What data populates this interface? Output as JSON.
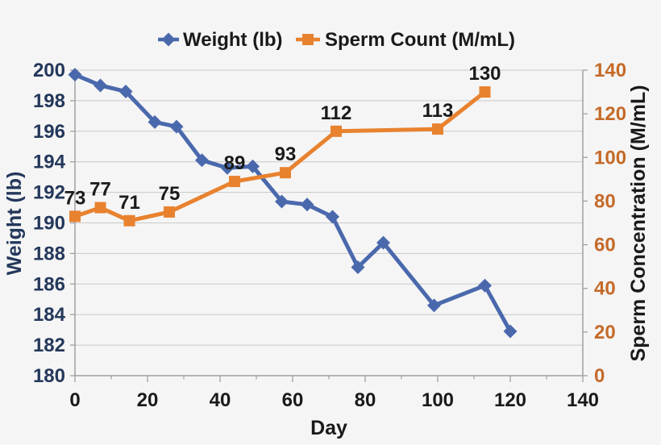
{
  "chart_data": {
    "type": "line",
    "title": "",
    "legend": {
      "position": "top",
      "entries": [
        "Weight (lb)",
        "Sperm Count (M/mL)"
      ]
    },
    "x_axis": {
      "label": "Day",
      "lim": [
        0,
        140
      ],
      "ticks": [
        0,
        20,
        40,
        60,
        80,
        100,
        120,
        140
      ],
      "minor_ticks": [
        10,
        30,
        50,
        70,
        90,
        110,
        130
      ]
    },
    "left_axis": {
      "label": "Weight (lb)",
      "lim": [
        180,
        200
      ],
      "ticks": [
        200,
        198,
        196,
        194,
        192,
        190,
        188,
        186,
        184,
        182,
        180
      ],
      "tick_color": "#24385B"
    },
    "right_axis": {
      "label": "Sperm Concentration (M/mL)",
      "lim": [
        0,
        140
      ],
      "ticks": [
        140,
        120,
        100,
        80,
        60,
        40,
        20,
        0
      ],
      "tick_color": "#C56A29",
      "label_color": "#1A1A1A"
    },
    "grid": "horizontal",
    "series": [
      {
        "name": "Weight (lb)",
        "axis": "left",
        "marker": "diamond",
        "color": "#4A69AD",
        "x": [
          0,
          7,
          14,
          22,
          28,
          35,
          42,
          49,
          57,
          64,
          71,
          78,
          85,
          99,
          113,
          120
        ],
        "y": [
          199.7,
          199.0,
          198.6,
          196.6,
          196.3,
          194.1,
          193.6,
          193.7,
          191.4,
          191.2,
          190.4,
          187.1,
          188.7,
          184.6,
          185.9,
          182.9
        ]
      },
      {
        "name": "Sperm Count (M/mL)",
        "axis": "right",
        "marker": "square",
        "color": "#E8822F",
        "x": [
          0,
          7,
          15,
          26,
          44,
          58,
          72,
          100,
          113
        ],
        "y": [
          73,
          77,
          71,
          75,
          89,
          93,
          112,
          113,
          130
        ],
        "data_labels": [
          "73",
          "77",
          "71",
          "75",
          "89",
          "93",
          "112",
          "113",
          "130"
        ]
      }
    ],
    "colors": {
      "background": "#F5F5F5",
      "grid": "#C9C9C9",
      "axis": "#A0A0A0",
      "text": "#1A1A1A"
    }
  }
}
